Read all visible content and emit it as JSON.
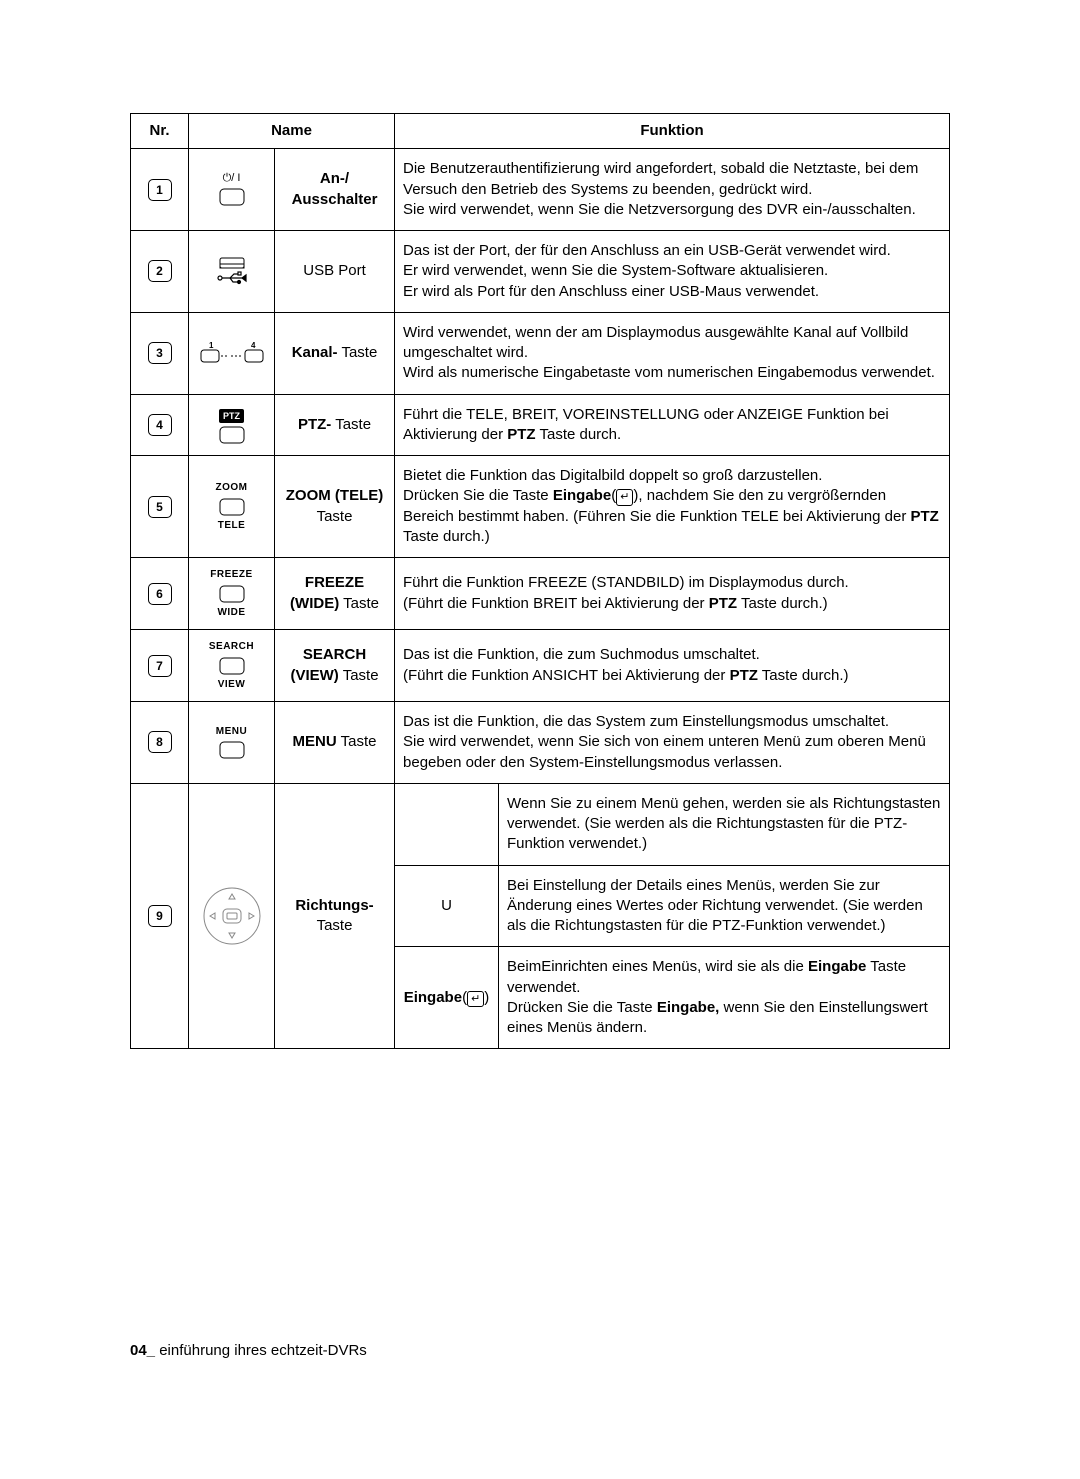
{
  "colors": {
    "page_bg": "#ffffff",
    "text": "#000000",
    "border": "#000000"
  },
  "header": {
    "nr": "Nr.",
    "name": "Name",
    "funktion": "Funktion"
  },
  "rows": [
    {
      "num": "1",
      "name_html": "<b>An-/<br>Ausschalter</b>",
      "func_html": "Die Benutzerauthentifizierung wird angefordert, sobald die Netztaste, bei dem Versuch den Betrieb des Systems zu beenden, gedrückt wird.<br>Sie wird verwendet, wenn Sie die Netzversorgung des DVR ein-/ausschalten."
    },
    {
      "num": "2",
      "name_html": "USB Port",
      "func_html": "Das ist der Port, der für den Anschluss an ein USB-Gerät verwendet wird.<br>Er wird verwendet, wenn Sie die System-Software aktualisieren.<br>Er wird als Port für den Anschluss einer USB-Maus verwendet."
    },
    {
      "num": "3",
      "name_html": "<b>Kanal-</b> Taste",
      "func_html": "Wird verwendet, wenn der am Displaymodus ausgewählte Kanal auf Vollbild umgeschaltet wird.<br>Wird als numerische Eingabetaste vom numerischen Eingabemodus verwendet."
    },
    {
      "num": "4",
      "name_html": "<b>PTZ-</b> Taste",
      "func_html": "Führt die TELE, BREIT, VOREINSTELLUNG oder ANZEIGE Funktion bei Aktivierung der <b>PTZ</b> Taste durch."
    },
    {
      "num": "5",
      "name_html": "<b>ZOOM (TELE)</b><br>Taste",
      "func_html": "Bietet die Funktion das Digitalbild doppelt so groß darzustellen.<br>Drücken Sie die Taste <b>Eingabe</b>(<span style='display:inline-block;border:1px solid #000;border-radius:3px;padding:0 3px;font-size:11px;'>&#8629;</span>), nachdem Sie den zu vergrößernden Bereich bestimmt haben. (Führen Sie die Funktion TELE bei Aktivierung der <b>PTZ</b> Taste durch.)",
      "icon_top": "ZOOM",
      "icon_bot": "TELE"
    },
    {
      "num": "6",
      "name_html": "<b>FREEZE<br>(WIDE)</b> Taste",
      "func_html": "Führt die Funktion FREEZE (STANDBILD) im Displaymodus durch.<br>(Führt die Funktion BREIT bei Aktivierung der <b>PTZ</b> Taste durch.)",
      "icon_top": "FREEZE",
      "icon_bot": "WIDE"
    },
    {
      "num": "7",
      "name_html": "<b>SEARCH<br>(VIEW)</b> Taste",
      "func_html": "Das ist die Funktion, die zum Suchmodus umschaltet.<br>(Führt die Funktion ANSICHT bei Aktivierung der <b>PTZ</b> Taste durch.)",
      "icon_top": "SEARCH",
      "icon_bot": "VIEW"
    },
    {
      "num": "8",
      "name_html": "<b>MENU</b> Taste",
      "func_html": "Das ist die Funktion, die das System zum Einstellungsmodus umschaltet.<br>Sie wird verwendet, wenn Sie sich von einem unteren Menü zum oberen Menü begeben oder den System-Einstellungsmodus verlassen.",
      "icon_top": "MENU"
    },
    {
      "num": "9",
      "name_html": "<b>Richtungs-</b><br>Taste",
      "sub": [
        {
          "label_html": "",
          "text_html": "Wenn Sie zu einem Menü gehen, werden sie als Richtungstasten verwendet. (Sie werden als die Richtungstasten für die PTZ-Funktion verwendet.)"
        },
        {
          "label_html": "U",
          "text_html": "Bei Einstellung der Details eines Menüs, werden Sie zur Änderung eines Wertes oder Richtung verwendet. (Sie werden als die Richtungstasten für die PTZ-Funktion verwendet.)"
        },
        {
          "label_html": "<b>Eingabe</b>(<span style='display:inline-block;border:1px solid #000;border-radius:3px;padding:0 3px;font-size:11px;'>&#8629;</span>)",
          "text_html": "BeimEinrichten eines Menüs, wird sie als die <b>Eingabe</b> Taste verwendet.<br>Drücken Sie die Taste <b>Eingabe,</b> wenn Sie den Einstellungswert eines Menüs ändern."
        }
      ]
    }
  ],
  "footer": {
    "page": "04_",
    "text": " einführung ihres echtzeit-DVRs"
  }
}
